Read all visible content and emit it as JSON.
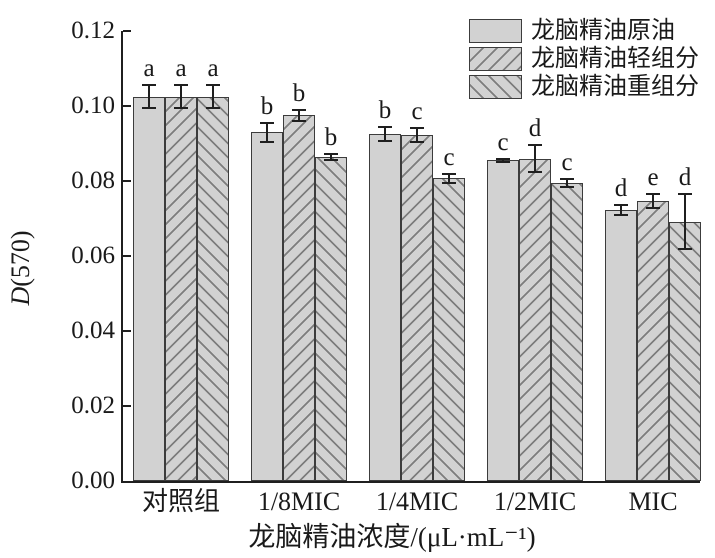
{
  "figure": {
    "background": "#ffffff"
  },
  "chart_data": {
    "type": "bar",
    "title": "",
    "xlabel": "龙脑精油浓度/(μL·mL⁻¹)",
    "ylabel": "D(570)",
    "ylabel_italic": "D",
    "ylabel_rest": "(570)",
    "categories": [
      "对照组",
      "1/8MIC",
      "1/4MIC",
      "1/2MIC",
      "MIC"
    ],
    "y_tick_labels": [
      "0.00",
      "0.02",
      "0.04",
      "0.06",
      "0.08",
      "0.10",
      "0.12"
    ],
    "ylim": [
      0,
      0.12
    ],
    "grid": false,
    "legend_position": "top-right",
    "series": [
      {
        "name": "龙脑精油原油",
        "pattern": "solid",
        "values": [
          0.1025,
          0.093,
          0.0925,
          0.0855,
          0.0722
        ],
        "errors": [
          0.0031,
          0.0026,
          0.0019,
          0.0005,
          0.0013
        ],
        "sig_letters": [
          "a",
          "b",
          "b",
          "c",
          "d"
        ]
      },
      {
        "name": "龙脑精油轻组分",
        "pattern": "hatch-forward-slash",
        "values": [
          0.1025,
          0.0975,
          0.0923,
          0.086,
          0.0746
        ],
        "errors": [
          0.0031,
          0.0014,
          0.0019,
          0.0036,
          0.0019
        ],
        "sig_letters": [
          "a",
          "b",
          "c",
          "d",
          "e"
        ]
      },
      {
        "name": "龙脑精油重组分",
        "pattern": "hatch-back-slash",
        "values": [
          0.1025,
          0.0863,
          0.0807,
          0.0795,
          0.0692
        ],
        "errors": [
          0.0031,
          0.0008,
          0.0011,
          0.001,
          0.0074
        ],
        "sig_letters": [
          "a",
          "b",
          "c",
          "c",
          "d"
        ]
      }
    ],
    "colors": {
      "bar_fill": "#d2d2d2",
      "bar_edge": "#3c3c3c",
      "hatch_line": "#7d7d7d",
      "axis": "#1f1f1f",
      "text": "#1a1a1a"
    }
  }
}
